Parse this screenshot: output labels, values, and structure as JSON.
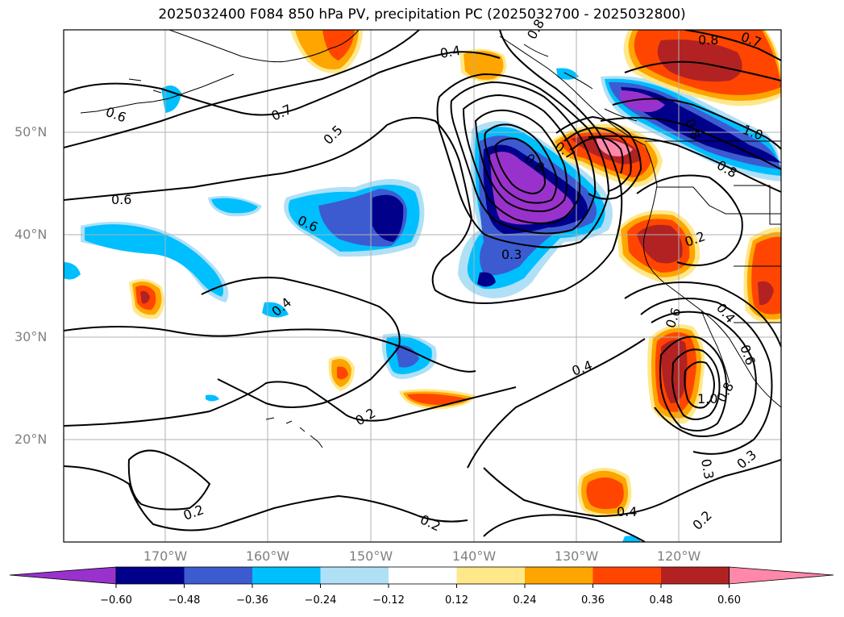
{
  "title": "2025032400 F084 850 hPa PV, precipitation PC (2025032700 - 2025032800)",
  "lat_labels": [
    "50°N",
    "40°N",
    "30°N",
    "20°N"
  ],
  "lon_labels": [
    "170°W",
    "160°W",
    "150°W",
    "140°W",
    "130°W",
    "120°W"
  ],
  "colorbar": {
    "ticks": [
      "−0.60",
      "−0.48",
      "−0.36",
      "−0.24",
      "−0.12",
      "0.12",
      "0.24",
      "0.36",
      "0.48",
      "0.60"
    ],
    "colors": [
      "#9932cc",
      "#00008b",
      "#3d5bd0",
      "#00bfff",
      "#b0e0f6",
      "#ffffff",
      "#ffe88a",
      "#ffa500",
      "#ff4500",
      "#b22222",
      "#ff88aa"
    ]
  },
  "contour_labels": [
    "0.4",
    "0.8",
    "0.7",
    "0.8",
    "0.6",
    "0.7",
    "0.5",
    "0.6",
    "0.6",
    "0.4",
    "0.7",
    "0.8",
    "0.3",
    "0.8",
    "1.0",
    "0.8",
    "0.2",
    "0.6",
    "0.4",
    "0.6",
    "0.2",
    "0.4",
    "0.2",
    "1.0",
    "0.8",
    "0.3",
    "0.3",
    "0.4",
    "0.2",
    "0.2"
  ]
}
